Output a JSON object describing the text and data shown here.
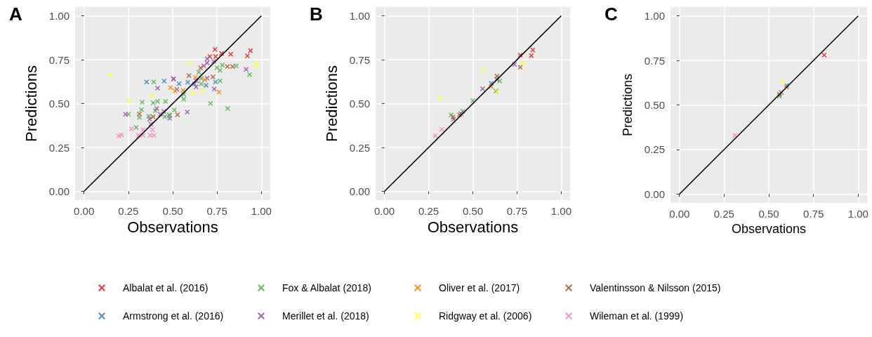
{
  "chart_data": [
    {
      "type": "scatter",
      "title": "A",
      "xlabel": "Observations",
      "ylabel": "Predictions",
      "xlim": [
        -0.05,
        1.05
      ],
      "ylim": [
        -0.05,
        1.05
      ],
      "xticks": [
        {
          "value": 0,
          "label": "0.00"
        },
        {
          "value": 0.25,
          "label": "0.25"
        },
        {
          "value": 0.5,
          "label": "0.50"
        },
        {
          "value": 0.75,
          "label": "0.75"
        },
        {
          "value": 1,
          "label": "1.00"
        }
      ],
      "yticks": [
        {
          "value": 0,
          "label": "0.00"
        },
        {
          "value": 0.25,
          "label": "0.25"
        },
        {
          "value": 0.5,
          "label": "0.50"
        },
        {
          "value": 0.75,
          "label": "0.75"
        },
        {
          "value": 1,
          "label": "1.00"
        }
      ],
      "grid": true,
      "marker": "cross",
      "legend": "bottom",
      "series": [
        {
          "name": "Albalat et al. (2016)",
          "color": "#e41a1c",
          "x": [
            0.738,
            0.938,
            0.709,
            0.742,
            0.775,
            0.827,
            0.921
          ],
          "values": [
            0.808,
            0.801,
            0.768,
            0.768,
            0.785,
            0.781,
            0.772
          ]
        },
        {
          "name": "Armstrong et al. (2016)",
          "color": "#377eb8",
          "x": [
            0.353,
            0.452,
            0.536,
            0.585,
            0.622,
            0.741,
            0.688
          ],
          "values": [
            0.623,
            0.628,
            0.613,
            0.621,
            0.612,
            0.623,
            0.604
          ]
        },
        {
          "name": "Fox & Albalat (2018)",
          "color": "#4daf4a",
          "x": [
            0.393,
            0.328,
            0.39,
            0.415,
            0.459,
            0.25,
            0.324,
            0.312,
            0.365,
            0.402,
            0.456,
            0.48,
            0.294,
            0.647,
            0.75,
            0.78,
            0.766,
            0.858,
            0.933,
            0.661,
            0.767,
            0.661,
            0.562,
            0.562,
            0.713,
            0.81,
            0.509,
            0.483
          ],
          "values": [
            0.623,
            0.508,
            0.504,
            0.512,
            0.512,
            0.439,
            0.465,
            0.421,
            0.428,
            0.459,
            0.425,
            0.436,
            0.364,
            0.679,
            0.705,
            0.719,
            0.689,
            0.715,
            0.665,
            0.643,
            0.629,
            0.612,
            0.552,
            0.525,
            0.501,
            0.472,
            0.463,
            0.432
          ]
        },
        {
          "name": "Merillet et al. (2018)",
          "color": "#984ea3",
          "x": [
            0.504,
            0.415,
            0.234,
            0.37,
            0.41,
            0.43,
            0.45,
            0.483,
            0.377,
            0.694,
            0.731,
            0.694,
            0.675,
            0.914,
            0.505,
            0.635,
            0.694,
            0.632,
            0.523,
            0.734,
            0.582
          ],
          "values": [
            0.64,
            0.588,
            0.439,
            0.412,
            0.472,
            0.439,
            0.455,
            0.416,
            0.383,
            0.755,
            0.741,
            0.732,
            0.715,
            0.695,
            0.641,
            0.629,
            0.645,
            0.595,
            0.581,
            0.583,
            0.452
          ]
        },
        {
          "name": "Oliver et al. (2017)",
          "color": "#ff7f00",
          "x": [
            0.488,
            0.628,
            0.681,
            0.513,
            0.558,
            0.761
          ],
          "values": [
            0.591,
            0.649,
            0.636,
            0.572,
            0.575,
            0.565
          ]
        },
        {
          "name": "Ridgway et al. (2006)",
          "color": "#ffff33",
          "x": [
            0.15,
            0.384,
            0.257,
            0.598,
            0.972,
            0.972,
            0.665,
            0.614
          ],
          "values": [
            0.663,
            0.545,
            0.515,
            0.731,
            0.729,
            0.712,
            0.572,
            0.559
          ]
        },
        {
          "name": "Valentinsson & Nilsson (2015)",
          "color": "#a65628",
          "x": [
            0.312,
            0.39,
            0.657,
            0.808,
            0.837,
            0.592,
            0.727,
            0.527
          ],
          "values": [
            0.44,
            0.425,
            0.703,
            0.711,
            0.711,
            0.659,
            0.652,
            0.436
          ]
        },
        {
          "name": "Wileman et al. (1999)",
          "color": "#f781bf",
          "x": [
            0.267,
            0.333,
            0.386,
            0.196,
            0.212,
            0.307,
            0.333,
            0.373,
            0.394
          ],
          "values": [
            0.356,
            0.351,
            0.351,
            0.316,
            0.321,
            0.319,
            0.319,
            0.319,
            0.319
          ]
        },
        {
          "type": "line",
          "color": "#000000",
          "line_style": "solid",
          "marker": "none",
          "x": [
            0,
            1
          ],
          "values": [
            0,
            1
          ]
        }
      ]
    },
    {
      "type": "scatter",
      "title": "B",
      "xlabel": "Observations",
      "ylabel": "Predictions",
      "xlim": [
        -0.05,
        1.05
      ],
      "ylim": [
        -0.05,
        1.05
      ],
      "xticks": [
        {
          "value": 0,
          "label": "0.00"
        },
        {
          "value": 0.25,
          "label": "0.25"
        },
        {
          "value": 0.5,
          "label": "0.50"
        },
        {
          "value": 0.75,
          "label": "0.75"
        },
        {
          "value": 1,
          "label": "1.00"
        }
      ],
      "yticks": [
        {
          "value": 0,
          "label": "0.00"
        },
        {
          "value": 0.25,
          "label": "0.25"
        },
        {
          "value": 0.5,
          "label": "0.50"
        },
        {
          "value": 0.75,
          "label": "0.75"
        },
        {
          "value": 1,
          "label": "1.00"
        }
      ],
      "grid": true,
      "marker": "cross",
      "series": [
        {
          "color": "#e41a1c",
          "x": [
            0.768,
            0.839,
            0.831
          ],
          "values": [
            0.776,
            0.805,
            0.773
          ]
        },
        {
          "color": "#377eb8",
          "x": [
            0.604
          ],
          "values": [
            0.615
          ]
        },
        {
          "color": "#4daf4a",
          "x": [
            0.652,
            0.631,
            0.5,
            0.443,
            0.377
          ],
          "values": [
            0.629,
            0.571,
            0.516,
            0.456,
            0.435
          ]
        },
        {
          "color": "#984ea3",
          "x": [
            0.736,
            0.635,
            0.555,
            0.432,
            0.391
          ],
          "values": [
            0.723,
            0.639,
            0.584,
            0.443,
            0.411
          ]
        },
        {
          "color": "#ff7f00",
          "x": [
            0.604
          ],
          "values": [
            0.597
          ]
        },
        {
          "color": "#ffff33",
          "x": [
            0.787,
            0.56,
            0.639,
            0.316
          ],
          "values": [
            0.731,
            0.688,
            0.567,
            0.531
          ]
        },
        {
          "color": "#a65628",
          "x": [
            0.768,
            0.637,
            0.424,
            0.388
          ],
          "values": [
            0.707,
            0.656,
            0.436,
            0.423
          ]
        },
        {
          "color": "#f781bf",
          "x": [
            0.325,
            0.287
          ],
          "values": [
            0.353,
            0.317
          ]
        },
        {
          "type": "line",
          "color": "#000000",
          "line_style": "solid",
          "marker": "none",
          "x": [
            0,
            1
          ],
          "values": [
            0,
            1
          ]
        }
      ]
    },
    {
      "type": "scatter",
      "title": "C",
      "xlabel": "Observations",
      "ylabel": "Predictions",
      "xlim": [
        -0.05,
        1.05
      ],
      "ylim": [
        -0.05,
        1.05
      ],
      "xticks": [
        {
          "value": 0,
          "label": "0.00"
        },
        {
          "value": 0.25,
          "label": "0.25"
        },
        {
          "value": 0.5,
          "label": "0.50"
        },
        {
          "value": 0.75,
          "label": "0.75"
        },
        {
          "value": 1,
          "label": "1.00"
        }
      ],
      "yticks": [
        {
          "value": 0,
          "label": "0.00"
        },
        {
          "value": 0.25,
          "label": "0.25"
        },
        {
          "value": 0.5,
          "label": "0.50"
        },
        {
          "value": 0.75,
          "label": "0.75"
        },
        {
          "value": 1,
          "label": "1.00"
        }
      ],
      "grid": true,
      "marker": "cross",
      "series": [
        {
          "color": "#e41a1c",
          "x": [
            0.81
          ],
          "values": [
            0.78
          ]
        },
        {
          "color": "#377eb8",
          "x": [
            0.6
          ],
          "values": [
            0.61
          ]
        },
        {
          "color": "#4daf4a",
          "x": [
            0.56
          ],
          "values": [
            0.55
          ]
        },
        {
          "color": "#984ea3",
          "x": [
            0.57
          ],
          "values": [
            0.57
          ]
        },
        {
          "color": "#ff7f00",
          "x": [
            0.6
          ],
          "values": [
            0.6
          ]
        },
        {
          "color": "#ffff33",
          "x": [
            0.58
          ],
          "values": [
            0.63
          ]
        },
        {
          "color": "#a65628",
          "x": [
            0.56
          ],
          "values": [
            0.56
          ]
        },
        {
          "color": "#f781bf",
          "x": [
            0.31
          ],
          "values": [
            0.33
          ]
        },
        {
          "type": "line",
          "color": "#000000",
          "line_style": "solid",
          "marker": "none",
          "x": [
            0,
            1
          ],
          "values": [
            0,
            1
          ]
        }
      ]
    }
  ]
}
